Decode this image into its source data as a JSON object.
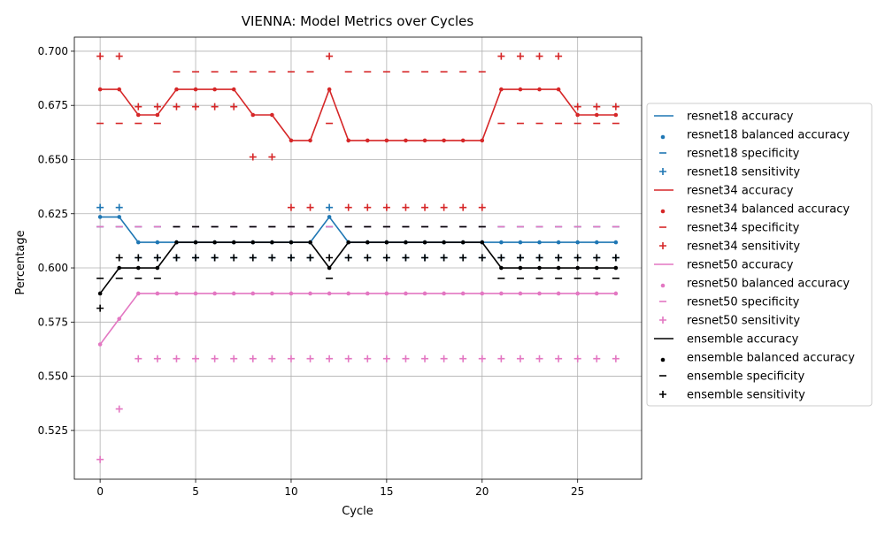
{
  "chart_data": {
    "type": "line",
    "title": "VIENNA: Model Metrics over Cycles",
    "xlabel": "Cycle",
    "ylabel": "Percentage",
    "xlim": [
      -1.35,
      28.35
    ],
    "ylim": [
      0.5025,
      0.7065
    ],
    "xticks": [
      0,
      5,
      10,
      15,
      20,
      25
    ],
    "xtick_labels": [
      "0",
      "5",
      "10",
      "15",
      "20",
      "25"
    ],
    "yticks": [
      0.525,
      0.55,
      0.575,
      0.6,
      0.625,
      0.65,
      0.675,
      0.7
    ],
    "ytick_labels": [
      "0.525",
      "0.550",
      "0.575",
      "0.600",
      "0.625",
      "0.650",
      "0.675",
      "0.700"
    ],
    "grid": true,
    "legend_position": "outside-right",
    "x": [
      0,
      1,
      2,
      3,
      4,
      5,
      6,
      7,
      8,
      9,
      10,
      11,
      12,
      13,
      14,
      15,
      16,
      17,
      18,
      19,
      20,
      21,
      22,
      23,
      24,
      25,
      26,
      27
    ],
    "models": [
      {
        "name": "resnet18",
        "color": "#1f77b4",
        "accuracy": [
          0.6235,
          0.6235,
          0.6118,
          0.6118,
          0.6118,
          0.6118,
          0.6118,
          0.6118,
          0.6118,
          0.6118,
          0.6118,
          0.6118,
          0.6235,
          0.6118,
          0.6118,
          0.6118,
          0.6118,
          0.6118,
          0.6118,
          0.6118,
          0.6118,
          0.6118,
          0.6118,
          0.6118,
          0.6118,
          0.6118,
          0.6118,
          0.6118
        ],
        "balanced_accuracy": [
          0.6235,
          0.6235,
          0.6118,
          0.6118,
          0.6118,
          0.6118,
          0.6118,
          0.6118,
          0.6118,
          0.6118,
          0.6118,
          0.6118,
          0.6235,
          0.6118,
          0.6118,
          0.6118,
          0.6118,
          0.6118,
          0.6118,
          0.6118,
          0.6118,
          0.6118,
          0.6118,
          0.6118,
          0.6118,
          0.6118,
          0.6118,
          0.6118
        ],
        "specificity": [
          0.619,
          0.619,
          0.619,
          0.619,
          0.619,
          0.619,
          0.619,
          0.619,
          0.619,
          0.619,
          0.619,
          0.619,
          0.619,
          0.619,
          0.619,
          0.619,
          0.619,
          0.619,
          0.619,
          0.619,
          0.619,
          0.619,
          0.619,
          0.619,
          0.619,
          0.619,
          0.619,
          0.619
        ],
        "sensitivity": [
          0.6279,
          0.6279,
          0.6047,
          0.6047,
          0.6047,
          0.6047,
          0.6047,
          0.6047,
          0.6047,
          0.6047,
          0.6047,
          0.6047,
          0.6279,
          0.6047,
          0.6047,
          0.6047,
          0.6047,
          0.6047,
          0.6047,
          0.6047,
          0.6047,
          0.6047,
          0.6047,
          0.6047,
          0.6047,
          0.6047,
          0.6047,
          0.6047
        ]
      },
      {
        "name": "resnet34",
        "color": "#d62728",
        "accuracy": [
          0.6824,
          0.6824,
          0.6706,
          0.6706,
          0.6824,
          0.6824,
          0.6824,
          0.6824,
          0.6706,
          0.6706,
          0.6588,
          0.6588,
          0.6824,
          0.6588,
          0.6588,
          0.6588,
          0.6588,
          0.6588,
          0.6588,
          0.6588,
          0.6588,
          0.6824,
          0.6824,
          0.6824,
          0.6824,
          0.6706,
          0.6706,
          0.6706
        ],
        "balanced_accuracy": [
          0.6824,
          0.6824,
          0.6706,
          0.6706,
          0.6824,
          0.6824,
          0.6824,
          0.6824,
          0.6706,
          0.6706,
          0.6588,
          0.6588,
          0.6824,
          0.6588,
          0.6588,
          0.6588,
          0.6588,
          0.6588,
          0.6588,
          0.6588,
          0.6588,
          0.6824,
          0.6824,
          0.6824,
          0.6824,
          0.6706,
          0.6706,
          0.6706
        ],
        "specificity": [
          0.6667,
          0.6667,
          0.6667,
          0.6667,
          0.6905,
          0.6905,
          0.6905,
          0.6905,
          0.6905,
          0.6905,
          0.6905,
          0.6905,
          0.6667,
          0.6905,
          0.6905,
          0.6905,
          0.6905,
          0.6905,
          0.6905,
          0.6905,
          0.6905,
          0.6667,
          0.6667,
          0.6667,
          0.6667,
          0.6667,
          0.6667,
          0.6667
        ],
        "sensitivity": [
          0.6977,
          0.6977,
          0.6744,
          0.6744,
          0.6744,
          0.6744,
          0.6744,
          0.6744,
          0.6512,
          0.6512,
          0.6279,
          0.6279,
          0.6977,
          0.6279,
          0.6279,
          0.6279,
          0.6279,
          0.6279,
          0.6279,
          0.6279,
          0.6279,
          0.6977,
          0.6977,
          0.6977,
          0.6977,
          0.6744,
          0.6744,
          0.6744
        ]
      },
      {
        "name": "resnet50",
        "color": "#e377c2",
        "accuracy": [
          0.5647,
          0.5765,
          0.5882,
          0.5882,
          0.5882,
          0.5882,
          0.5882,
          0.5882,
          0.5882,
          0.5882,
          0.5882,
          0.5882,
          0.5882,
          0.5882,
          0.5882,
          0.5882,
          0.5882,
          0.5882,
          0.5882,
          0.5882,
          0.5882,
          0.5882,
          0.5882,
          0.5882,
          0.5882,
          0.5882,
          0.5882,
          0.5882
        ],
        "balanced_accuracy": [
          0.5647,
          0.5765,
          0.5882,
          0.5882,
          0.5882,
          0.5882,
          0.5882,
          0.5882,
          0.5882,
          0.5882,
          0.5882,
          0.5882,
          0.5882,
          0.5882,
          0.5882,
          0.5882,
          0.5882,
          0.5882,
          0.5882,
          0.5882,
          0.5882,
          0.5882,
          0.5882,
          0.5882,
          0.5882,
          0.5882,
          0.5882,
          0.5882
        ],
        "specificity": [
          0.619,
          0.619,
          0.619,
          0.619,
          0.619,
          0.619,
          0.619,
          0.619,
          0.619,
          0.619,
          0.619,
          0.619,
          0.619,
          0.619,
          0.619,
          0.619,
          0.619,
          0.619,
          0.619,
          0.619,
          0.619,
          0.619,
          0.619,
          0.619,
          0.619,
          0.619,
          0.619,
          0.619
        ],
        "sensitivity": [
          0.5116,
          0.5349,
          0.5581,
          0.5581,
          0.5581,
          0.5581,
          0.5581,
          0.5581,
          0.5581,
          0.5581,
          0.5581,
          0.5581,
          0.5581,
          0.5581,
          0.5581,
          0.5581,
          0.5581,
          0.5581,
          0.5581,
          0.5581,
          0.5581,
          0.5581,
          0.5581,
          0.5581,
          0.5581,
          0.5581,
          0.5581,
          0.5581
        ]
      },
      {
        "name": "ensemble",
        "color": "#000000",
        "accuracy": [
          0.5882,
          0.6,
          0.6,
          0.6,
          0.6118,
          0.6118,
          0.6118,
          0.6118,
          0.6118,
          0.6118,
          0.6118,
          0.6118,
          0.6,
          0.6118,
          0.6118,
          0.6118,
          0.6118,
          0.6118,
          0.6118,
          0.6118,
          0.6118,
          0.6,
          0.6,
          0.6,
          0.6,
          0.6,
          0.6,
          0.6
        ],
        "balanced_accuracy": [
          0.5882,
          0.6,
          0.6,
          0.6,
          0.6118,
          0.6118,
          0.6118,
          0.6118,
          0.6118,
          0.6118,
          0.6118,
          0.6118,
          0.6,
          0.6118,
          0.6118,
          0.6118,
          0.6118,
          0.6118,
          0.6118,
          0.6118,
          0.6118,
          0.6,
          0.6,
          0.6,
          0.6,
          0.6,
          0.6,
          0.6
        ],
        "specificity": [
          0.5952,
          0.5952,
          0.5952,
          0.5952,
          0.619,
          0.619,
          0.619,
          0.619,
          0.619,
          0.619,
          0.619,
          0.619,
          0.5952,
          0.619,
          0.619,
          0.619,
          0.619,
          0.619,
          0.619,
          0.619,
          0.619,
          0.5952,
          0.5952,
          0.5952,
          0.5952,
          0.5952,
          0.5952,
          0.5952
        ],
        "sensitivity": [
          0.5814,
          0.6047,
          0.6047,
          0.6047,
          0.6047,
          0.6047,
          0.6047,
          0.6047,
          0.6047,
          0.6047,
          0.6047,
          0.6047,
          0.6047,
          0.6047,
          0.6047,
          0.6047,
          0.6047,
          0.6047,
          0.6047,
          0.6047,
          0.6047,
          0.6047,
          0.6047,
          0.6047,
          0.6047,
          0.6047,
          0.6047,
          0.6047
        ]
      }
    ],
    "legend": [
      {
        "label": "resnet18 accuracy",
        "color": "#1f77b4",
        "kind": "line"
      },
      {
        "label": "resnet18 balanced accuracy",
        "color": "#1f77b4",
        "kind": "dot"
      },
      {
        "label": "resnet18 specificity",
        "color": "#1f77b4",
        "kind": "dash"
      },
      {
        "label": "resnet18 sensitivity",
        "color": "#1f77b4",
        "kind": "plus"
      },
      {
        "label": "resnet34 accuracy",
        "color": "#d62728",
        "kind": "line"
      },
      {
        "label": "resnet34 balanced accuracy",
        "color": "#d62728",
        "kind": "dot"
      },
      {
        "label": "resnet34 specificity",
        "color": "#d62728",
        "kind": "dash"
      },
      {
        "label": "resnet34 sensitivity",
        "color": "#d62728",
        "kind": "plus"
      },
      {
        "label": "resnet50 accuracy",
        "color": "#e377c2",
        "kind": "line"
      },
      {
        "label": "resnet50 balanced accuracy",
        "color": "#e377c2",
        "kind": "dot"
      },
      {
        "label": "resnet50 specificity",
        "color": "#e377c2",
        "kind": "dash"
      },
      {
        "label": "resnet50 sensitivity",
        "color": "#e377c2",
        "kind": "plus"
      },
      {
        "label": "ensemble accuracy",
        "color": "#000000",
        "kind": "line"
      },
      {
        "label": "ensemble balanced accuracy",
        "color": "#000000",
        "kind": "dot"
      },
      {
        "label": "ensemble specificity",
        "color": "#000000",
        "kind": "dash"
      },
      {
        "label": "ensemble sensitivity",
        "color": "#000000",
        "kind": "plus"
      }
    ]
  }
}
